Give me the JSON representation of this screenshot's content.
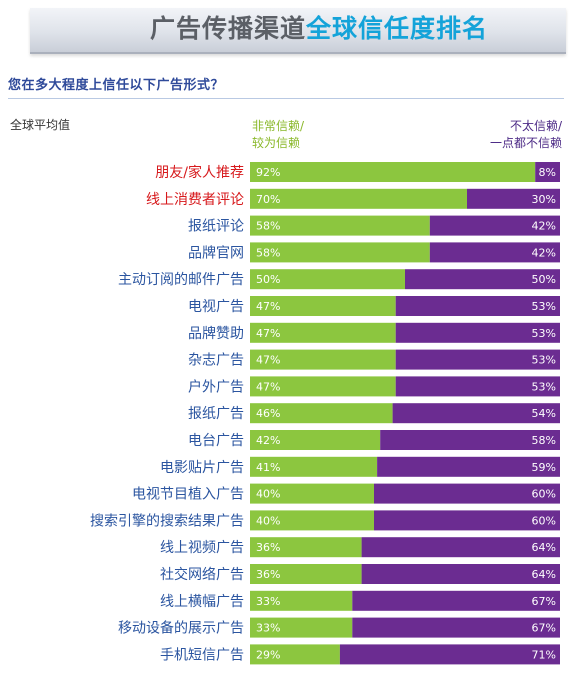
{
  "header": {
    "title_part1": "广告传播渠道",
    "title_part2": "全球信任度排名"
  },
  "question": "您在多大程度上信任以下广告形式？",
  "avg_label": "全球平均值",
  "legend": {
    "trust_line1": "非常信赖/",
    "trust_line2": "较为信赖",
    "distrust_line1": "不太信赖/",
    "distrust_line2": "一点都不信赖"
  },
  "colors": {
    "trust": "#8cc63f",
    "distrust": "#6b2c91",
    "highlight_label": "#d7191c",
    "normal_label": "#2b55a0"
  },
  "chart_data": {
    "type": "bar",
    "orientation": "horizontal",
    "stacked": true,
    "categories": [
      "朋友/家人推荐",
      "线上消费者评论",
      "报纸评论",
      "品牌官网",
      "主动订阅的邮件广告",
      "电视广告",
      "品牌赞助",
      "杂志广告",
      "户外广告",
      "报纸广告",
      "电台广告",
      "电影贴片广告",
      "电视节目植入广告",
      "搜索引擎的搜索结果广告",
      "线上视频广告",
      "社交网络广告",
      "线上横幅广告",
      "移动设备的展示广告",
      "手机短信广告"
    ],
    "highlighted": [
      0,
      1
    ],
    "series": [
      {
        "name": "非常信赖/较为信赖",
        "values": [
          92,
          70,
          58,
          58,
          50,
          47,
          47,
          47,
          47,
          46,
          42,
          41,
          40,
          40,
          36,
          36,
          33,
          33,
          29
        ],
        "labels": [
          "92%",
          "70%",
          "58%",
          "58%",
          "50%",
          "47%",
          "47%",
          "47%",
          "47%",
          "46%",
          "42%",
          "41%",
          "40%",
          "40%",
          "36%",
          "36%",
          "33%",
          "33%",
          "29%"
        ]
      },
      {
        "name": "不太信赖/一点都不信赖",
        "values": [
          8,
          30,
          42,
          42,
          50,
          53,
          53,
          53,
          53,
          54,
          58,
          59,
          60,
          60,
          64,
          64,
          67,
          67,
          71
        ],
        "labels": [
          "8%",
          "30%",
          "42%",
          "42%",
          "50%",
          "53%",
          "53%",
          "53%",
          "53%",
          "54%",
          "58%",
          "59%",
          "60%",
          "60%",
          "64%",
          "64%",
          "67%",
          "67%",
          "71%"
        ]
      }
    ],
    "xlim": [
      0,
      100
    ],
    "legend_position": "top"
  }
}
